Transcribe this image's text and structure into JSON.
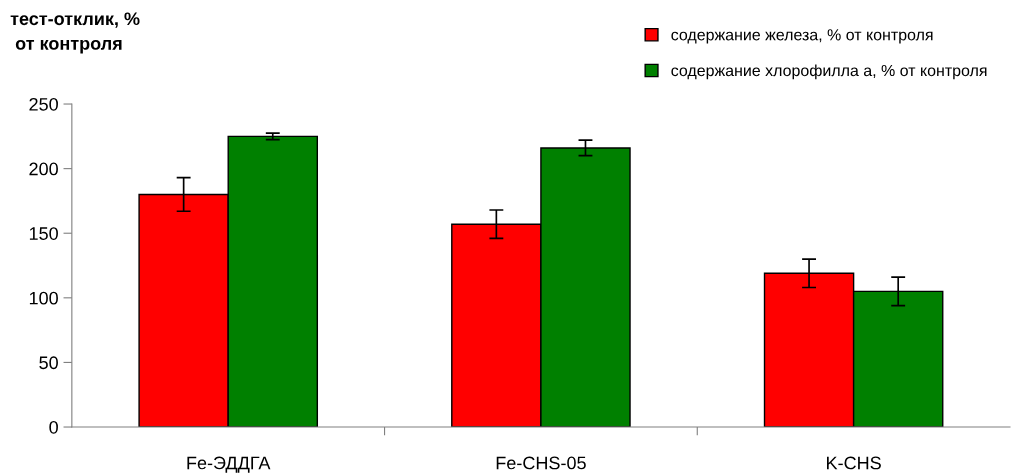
{
  "chart_data": {
    "type": "bar",
    "ylabel": "тест-отклик, %\n от контроля",
    "categories": [
      "Fe-ЭДДГА",
      "Fe-CHS-05",
      "K-CHS"
    ],
    "series": [
      {
        "name": "содержание железа, % от контроля",
        "color": "#ff0000",
        "values": [
          180,
          157,
          119
        ],
        "errors": [
          13,
          11,
          11
        ]
      },
      {
        "name": "содержание хлорофилла а, % от контроля",
        "color": "#008000",
        "values": [
          225,
          216,
          105
        ],
        "errors": [
          2.5,
          6,
          11
        ]
      }
    ],
    "ylim": [
      0,
      250
    ],
    "yticks": [
      0,
      50,
      100,
      150,
      200,
      250
    ],
    "grid": false,
    "legend": "top right"
  }
}
